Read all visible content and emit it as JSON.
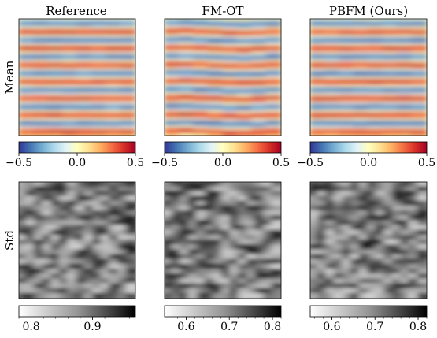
{
  "chart_data": {
    "type": "heatmap",
    "columns": [
      "Reference",
      "FM-OT",
      "PBFM (Ours)"
    ],
    "rows": [
      "Mean",
      "Std"
    ],
    "panels": [
      {
        "row": "Mean",
        "column": "Reference",
        "colormap": "RdYlBu_r",
        "vmin": -0.5,
        "vmax": 0.5,
        "stripes": 7,
        "pattern": "horizontal-stripes"
      },
      {
        "row": "Mean",
        "column": "FM-OT",
        "colormap": "RdYlBu_r",
        "vmin": -0.5,
        "vmax": 0.5,
        "stripes": 7,
        "pattern": "horizontal-stripes-wavy"
      },
      {
        "row": "Mean",
        "column": "PBFM (Ours)",
        "colormap": "RdYlBu_r",
        "vmin": -0.5,
        "vmax": 0.5,
        "stripes": 7,
        "pattern": "horizontal-stripes"
      },
      {
        "row": "Std",
        "column": "Reference",
        "colormap": "Greys",
        "vmin": 0.78,
        "vmax": 0.97,
        "pattern": "noise"
      },
      {
        "row": "Std",
        "column": "FM-OT",
        "colormap": "Greys",
        "vmin": 0.55,
        "vmax": 0.82,
        "pattern": "noise"
      },
      {
        "row": "Std",
        "column": "PBFM (Ours)",
        "colormap": "Greys",
        "vmin": 0.55,
        "vmax": 0.82,
        "pattern": "noise"
      }
    ],
    "colorbars": [
      {
        "row": "Mean",
        "column": "Reference",
        "colormap": "RdYlBu_r",
        "ticks": [
          "−0.5",
          "0.0",
          "0.5"
        ],
        "tick_values": [
          -0.5,
          0.0,
          0.5
        ],
        "range": [
          -0.5,
          0.5
        ]
      },
      {
        "row": "Mean",
        "column": "FM-OT",
        "colormap": "RdYlBu_r",
        "ticks": [
          "−0.5",
          "0.0",
          "0.5"
        ],
        "tick_values": [
          -0.5,
          0.0,
          0.5
        ],
        "range": [
          -0.5,
          0.5
        ]
      },
      {
        "row": "Mean",
        "column": "PBFM (Ours)",
        "colormap": "RdYlBu_r",
        "ticks": [
          "−0.5",
          "0.0",
          "0.5"
        ],
        "tick_values": [
          -0.5,
          0.0,
          0.5
        ],
        "range": [
          -0.5,
          0.5
        ]
      },
      {
        "row": "Std",
        "column": "Reference",
        "colormap": "Greys",
        "ticks": [
          "0.8",
          "0.9"
        ],
        "tick_values": [
          0.8,
          0.9
        ],
        "range": [
          0.78,
          0.97
        ]
      },
      {
        "row": "Std",
        "column": "FM-OT",
        "colormap": "Greys",
        "ticks": [
          "0.6",
          "0.7",
          "0.8"
        ],
        "tick_values": [
          0.6,
          0.7,
          0.8
        ],
        "range": [
          0.55,
          0.82
        ]
      },
      {
        "row": "Std",
        "column": "PBFM (Ours)",
        "colormap": "Greys",
        "ticks": [
          "0.6",
          "0.7",
          "0.8"
        ],
        "tick_values": [
          0.6,
          0.7,
          0.8
        ],
        "range": [
          0.55,
          0.82
        ]
      }
    ]
  }
}
